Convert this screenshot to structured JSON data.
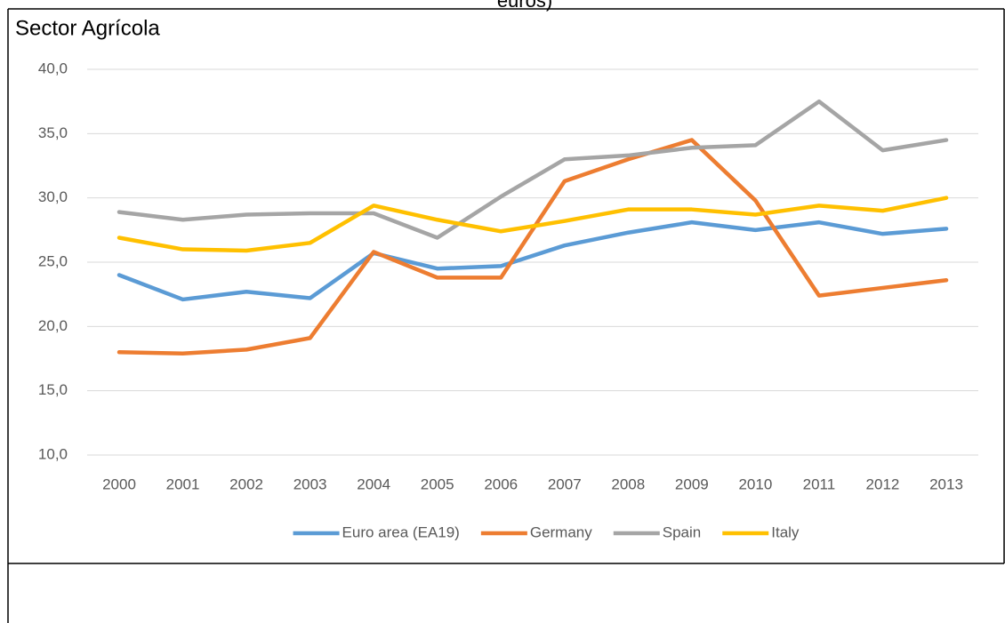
{
  "page_caption": "euros)",
  "chart_data": {
    "type": "line",
    "title": "Sector Agrícola",
    "categories": [
      "2000",
      "2001",
      "2002",
      "2003",
      "2004",
      "2005",
      "2006",
      "2007",
      "2008",
      "2009",
      "2010",
      "2011",
      "2012",
      "2013"
    ],
    "series": [
      {
        "name": "Euro area (EA19)",
        "color": "#5b9bd5",
        "values": [
          24.0,
          22.1,
          22.7,
          22.2,
          25.7,
          24.5,
          24.7,
          26.3,
          27.3,
          28.1,
          27.5,
          28.1,
          27.2,
          27.6
        ]
      },
      {
        "name": "Germany",
        "color": "#ed7d31",
        "values": [
          18.0,
          17.9,
          18.2,
          19.1,
          25.8,
          23.8,
          23.8,
          31.3,
          33.0,
          34.5,
          29.8,
          22.4,
          23.0,
          23.6
        ]
      },
      {
        "name": "Spain",
        "color": "#a5a5a5",
        "values": [
          28.9,
          28.3,
          28.7,
          28.8,
          28.8,
          26.9,
          30.1,
          33.0,
          33.3,
          33.9,
          34.1,
          37.5,
          33.7,
          34.5
        ]
      },
      {
        "name": "Italy",
        "color": "#ffc000",
        "values": [
          26.9,
          26.0,
          25.9,
          26.5,
          29.4,
          28.3,
          27.4,
          28.2,
          29.1,
          29.1,
          28.7,
          29.4,
          29.0,
          30.0
        ]
      }
    ],
    "ylim": [
      10,
      40
    ],
    "yticks": [
      {
        "value": 10,
        "label": "10,0"
      },
      {
        "value": 15,
        "label": "15,0"
      },
      {
        "value": 20,
        "label": "20,0"
      },
      {
        "value": 25,
        "label": "25,0"
      },
      {
        "value": 30,
        "label": "30,0"
      },
      {
        "value": 35,
        "label": "35,0"
      },
      {
        "value": 40,
        "label": "40,0"
      }
    ],
    "grid": true,
    "legend": "bottom"
  }
}
